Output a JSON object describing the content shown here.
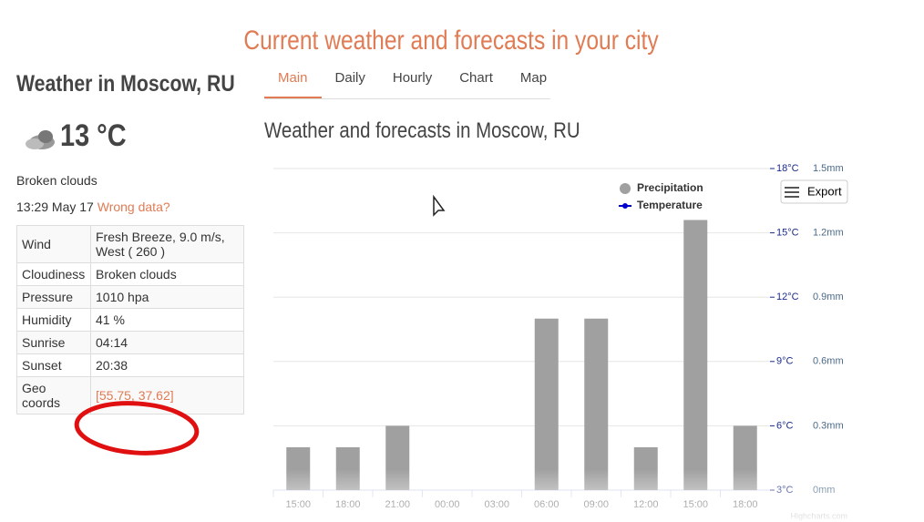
{
  "header": {
    "title": "Current weather and forecasts in your city"
  },
  "city": {
    "title": "Weather in Moscow, RU",
    "temperature": "13 °C",
    "description": "Broken clouds",
    "time": "13:29 May 17",
    "wrong_data": "Wrong data?"
  },
  "table": {
    "rows": [
      [
        "Wind",
        "Fresh Breeze, 9.0 m/s, West ( 260 )"
      ],
      [
        "Cloudiness",
        "Broken clouds"
      ],
      [
        "Pressure",
        "1010 hpa"
      ],
      [
        "Humidity",
        "41 %"
      ],
      [
        "Sunrise",
        "04:14"
      ],
      [
        "Sunset",
        "20:38"
      ],
      [
        "Geo coords",
        "[55.75, 37.62]"
      ]
    ]
  },
  "tabs": [
    "Main",
    "Daily",
    "Hourly",
    "Chart",
    "Map"
  ],
  "section_title": "Weather and forecasts in Moscow, RU",
  "chart_data": {
    "type": "bar",
    "categories": [
      "15:00",
      "18:00",
      "21:00",
      "00:00",
      "03:00",
      "06:00",
      "09:00",
      "12:00",
      "15:00",
      "18:00"
    ],
    "series": [
      {
        "name": "Precipitation",
        "color": "#a0a0a0",
        "values": [
          0.2,
          0.2,
          0.3,
          0,
          0,
          0.8,
          0.8,
          0.2,
          1.26,
          0.3
        ]
      },
      {
        "name": "Temperature",
        "color": "#0000cc",
        "axis": "y2",
        "values": [
          null,
          null,
          null,
          null,
          null,
          null,
          null,
          null,
          null,
          null
        ]
      }
    ],
    "ylim": [
      0,
      1.5
    ],
    "yticks": [
      {
        "value": 0,
        "label": "0mm"
      },
      {
        "value": 0.3,
        "label": "0.3mm"
      },
      {
        "value": 0.6,
        "label": "0.6mm"
      },
      {
        "value": 0.9,
        "label": "0.9mm"
      },
      {
        "value": 1.2,
        "label": "1.2mm"
      },
      {
        "value": 1.5,
        "label": "1.5mm"
      }
    ],
    "y2lim": [
      3,
      18
    ],
    "y2ticks": [
      {
        "value": 3,
        "label": "3°C"
      },
      {
        "value": 6,
        "label": "6°C"
      },
      {
        "value": 9,
        "label": "9°C"
      },
      {
        "value": 12,
        "label": "12°C"
      },
      {
        "value": 15,
        "label": "15°C"
      },
      {
        "value": 18,
        "label": "18°C"
      }
    ],
    "grid": true,
    "legend": "top-right",
    "export_button": "Export",
    "credits": "Highcharts.com"
  }
}
